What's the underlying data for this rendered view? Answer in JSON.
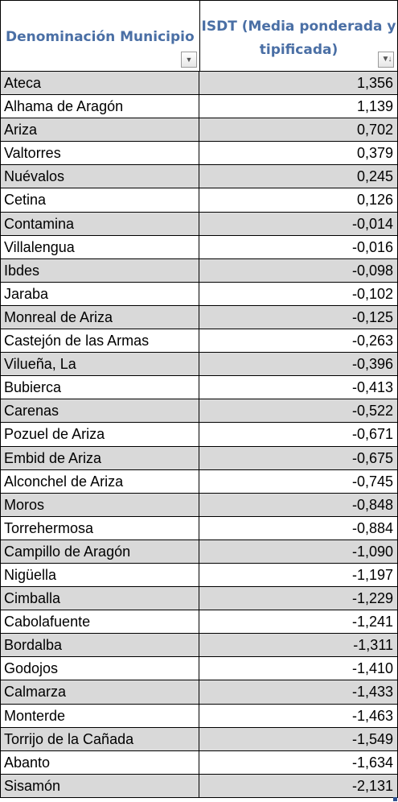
{
  "header": {
    "col1": "Denominación  Municipio",
    "col2": "ISDT (Media ponderada y tipificada)",
    "col1_filter_icon": "dropdown-arrow-icon",
    "col2_filter_icon": "sort-descending-icon"
  },
  "colors": {
    "header_text": "#4a6fa5",
    "band": "#d9d9d9"
  },
  "rows": [
    {
      "name": "Ateca",
      "value": "1,356"
    },
    {
      "name": "Alhama de Aragón",
      "value": "1,139"
    },
    {
      "name": "Ariza",
      "value": "0,702"
    },
    {
      "name": "Valtorres",
      "value": "0,379"
    },
    {
      "name": "Nuévalos",
      "value": "0,245"
    },
    {
      "name": "Cetina",
      "value": "0,126"
    },
    {
      "name": "Contamina",
      "value": "-0,014"
    },
    {
      "name": "Villalengua",
      "value": "-0,016"
    },
    {
      "name": "Ibdes",
      "value": "-0,098"
    },
    {
      "name": "Jaraba",
      "value": "-0,102"
    },
    {
      "name": "Monreal de Ariza",
      "value": "-0,125"
    },
    {
      "name": "Castejón de las Armas",
      "value": "-0,263"
    },
    {
      "name": "Vilueña, La",
      "value": "-0,396"
    },
    {
      "name": "Bubierca",
      "value": "-0,413"
    },
    {
      "name": "Carenas",
      "value": "-0,522"
    },
    {
      "name": "Pozuel de Ariza",
      "value": "-0,671"
    },
    {
      "name": "Embid de Ariza",
      "value": "-0,675"
    },
    {
      "name": "Alconchel de Ariza",
      "value": "-0,745"
    },
    {
      "name": "Moros",
      "value": "-0,848"
    },
    {
      "name": "Torrehermosa",
      "value": "-0,884"
    },
    {
      "name": "Campillo de Aragón",
      "value": "-1,090"
    },
    {
      "name": "Nigüella",
      "value": "-1,197"
    },
    {
      "name": "Cimballa",
      "value": "-1,229"
    },
    {
      "name": "Cabolafuente",
      "value": "-1,241"
    },
    {
      "name": "Bordalba",
      "value": "-1,311"
    },
    {
      "name": "Godojos",
      "value": "-1,410"
    },
    {
      "name": "Calmarza",
      "value": "-1,433"
    },
    {
      "name": "Monterde",
      "value": "-1,463"
    },
    {
      "name": "Torrijo de la Cañada",
      "value": "-1,549"
    },
    {
      "name": "Abanto",
      "value": "-1,634"
    },
    {
      "name": "Sisamón",
      "value": "-2,131"
    }
  ]
}
